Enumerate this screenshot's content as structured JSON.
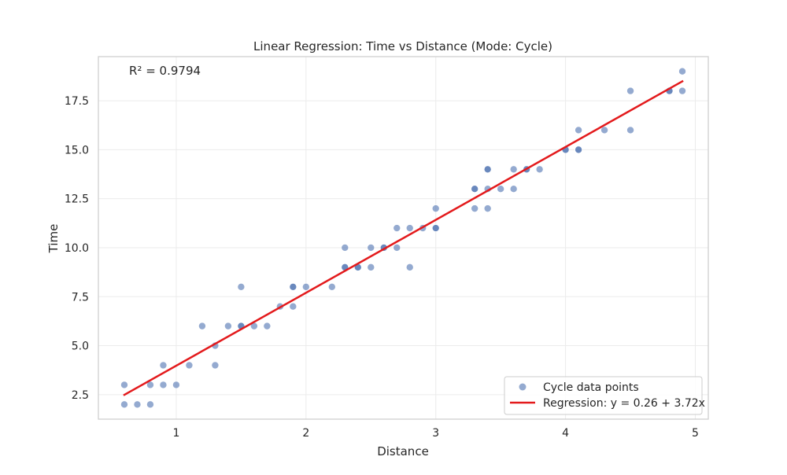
{
  "chart_data": {
    "type": "scatter",
    "title": "Linear Regression: Time vs Distance (Mode: Cycle)",
    "xlabel": "Distance",
    "ylabel": "Time",
    "xlim": [
      0.4,
      5.1
    ],
    "ylim": [
      1.25,
      19.75
    ],
    "x_ticks": [
      1,
      2,
      3,
      4,
      5
    ],
    "x_tick_labels": [
      "1",
      "2",
      "3",
      "4",
      "5"
    ],
    "y_ticks": [
      2.5,
      5.0,
      7.5,
      10.0,
      12.5,
      15.0,
      17.5
    ],
    "y_tick_labels": [
      "2.5",
      "5.0",
      "7.5",
      "10.0",
      "12.5",
      "15.0",
      "17.5"
    ],
    "grid": true,
    "legend_position": "bottom-right",
    "annotation": "R² = 0.9794",
    "series": [
      {
        "name": "Cycle data points",
        "kind": "scatter",
        "color": "#4c72b0",
        "points": [
          [
            0.6,
            3
          ],
          [
            0.6,
            2
          ],
          [
            0.7,
            2
          ],
          [
            0.8,
            3
          ],
          [
            0.8,
            2
          ],
          [
            0.9,
            4
          ],
          [
            0.9,
            3
          ],
          [
            1.0,
            3
          ],
          [
            1.1,
            4
          ],
          [
            1.2,
            6
          ],
          [
            1.3,
            5
          ],
          [
            1.3,
            4
          ],
          [
            1.4,
            6
          ],
          [
            1.5,
            8
          ],
          [
            1.5,
            6
          ],
          [
            1.5,
            6
          ],
          [
            1.6,
            6
          ],
          [
            1.7,
            6
          ],
          [
            1.8,
            7
          ],
          [
            1.9,
            8
          ],
          [
            1.9,
            8
          ],
          [
            1.9,
            7
          ],
          [
            2.0,
            8
          ],
          [
            2.2,
            8
          ],
          [
            2.3,
            10
          ],
          [
            2.3,
            9
          ],
          [
            2.3,
            9
          ],
          [
            2.4,
            9
          ],
          [
            2.4,
            9
          ],
          [
            2.5,
            10
          ],
          [
            2.5,
            9
          ],
          [
            2.6,
            10
          ],
          [
            2.6,
            10
          ],
          [
            2.7,
            11
          ],
          [
            2.7,
            10
          ],
          [
            2.8,
            11
          ],
          [
            2.8,
            9
          ],
          [
            2.9,
            11
          ],
          [
            3.0,
            12
          ],
          [
            3.0,
            11
          ],
          [
            3.0,
            11
          ],
          [
            3.3,
            13
          ],
          [
            3.3,
            13
          ],
          [
            3.3,
            12
          ],
          [
            3.4,
            14
          ],
          [
            3.4,
            14
          ],
          [
            3.4,
            13
          ],
          [
            3.4,
            12
          ],
          [
            3.5,
            13
          ],
          [
            3.6,
            14
          ],
          [
            3.6,
            13
          ],
          [
            3.7,
            14
          ],
          [
            3.7,
            14
          ],
          [
            3.8,
            14
          ],
          [
            4.0,
            15
          ],
          [
            4.0,
            15
          ],
          [
            4.1,
            16
          ],
          [
            4.1,
            15
          ],
          [
            4.1,
            15
          ],
          [
            4.3,
            16
          ],
          [
            4.5,
            18
          ],
          [
            4.5,
            16
          ],
          [
            4.8,
            18
          ],
          [
            4.8,
            18
          ],
          [
            4.9,
            19
          ],
          [
            4.9,
            18
          ]
        ]
      },
      {
        "name": "Regression: y = 0.26 + 3.72x",
        "kind": "line",
        "color": "#e31a1c",
        "points": [
          [
            0.6,
            2.49
          ],
          [
            4.9,
            18.49
          ]
        ]
      }
    ]
  }
}
